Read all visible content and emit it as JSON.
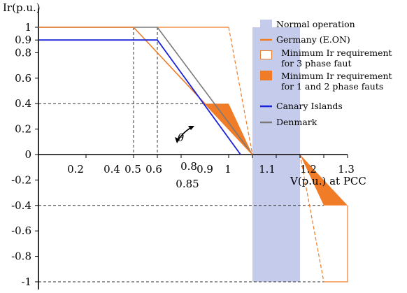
{
  "chart_data": {
    "type": "line",
    "ylabel": "Ir(p.u.)",
    "xlabel": "V(p.u.) at PCC",
    "xlim": [
      0,
      1.3
    ],
    "ylim": [
      -1,
      1
    ],
    "x_ticks": [
      {
        "label": "0.2",
        "value": 0.2
      },
      {
        "label": "0.4",
        "value": 0.4
      },
      {
        "label": "0.5",
        "value": 0.5
      },
      {
        "label": "0.6",
        "value": 0.6
      },
      {
        "label": "0.8",
        "value": 0.8
      },
      {
        "label": "0.85",
        "value": 0.85
      },
      {
        "label": "0.9",
        "value": 0.9
      },
      {
        "label": "1",
        "value": 1.0
      },
      {
        "label": "1.1",
        "value": 1.1
      },
      {
        "label": "1.2",
        "value": 1.2
      },
      {
        "label": "1.3",
        "value": 1.3
      }
    ],
    "y_ticks": [
      {
        "label": "1",
        "value": 1.0
      },
      {
        "label": "0.9",
        "value": 0.9
      },
      {
        "label": "0.8",
        "value": 0.8
      },
      {
        "label": "0.6",
        "value": 0.6
      },
      {
        "label": "0.4",
        "value": 0.4
      },
      {
        "label": "0.2",
        "value": 0.2
      },
      {
        "label": "0",
        "value": 0
      },
      {
        "label": "-0.2",
        "value": -0.2
      },
      {
        "label": "-0.4",
        "value": -0.4
      },
      {
        "label": "-0.6",
        "value": -0.6
      },
      {
        "label": "-0.8",
        "value": -0.8
      },
      {
        "label": "-1",
        "value": -1.0
      }
    ],
    "angle_label": "θ",
    "series": [
      {
        "name": "Normal operation",
        "kind": "band",
        "color": "#c5cbeb",
        "x": [
          0.9,
          1.1
        ],
        "y": [
          -1,
          1
        ]
      },
      {
        "name": "Germany (E.ON)",
        "kind": "line",
        "color": "#f07c28",
        "x": [
          0,
          0.4,
          0.9
        ],
        "y": [
          1,
          1,
          0
        ]
      },
      {
        "name": "Minimum Ir requirement for 3 phase faut",
        "kind": "outline",
        "color": "#f07c28",
        "x": [
          0.5,
          0.8,
          0.9
        ],
        "y": [
          1,
          1,
          0
        ],
        "x2": [
          1.1,
          1.2,
          1.3
        ],
        "y2": [
          0,
          -1,
          -1
        ]
      },
      {
        "name": "Minimum Ir requirement for 1 and 2 phase fauts",
        "kind": "filled",
        "color": "#f07c28",
        "x": [
          0.7,
          0.8,
          0.9
        ],
        "y": [
          0.4,
          0.4,
          0
        ],
        "x2": [
          1.1,
          1.3,
          1.2
        ],
        "y2": [
          0,
          -0.4,
          -0.4
        ]
      },
      {
        "name": "Canary Islands",
        "kind": "line",
        "color": "#1a22d8",
        "x": [
          0,
          0.5,
          0.85
        ],
        "y": [
          0.9,
          0.9,
          0
        ]
      },
      {
        "name": "Denmark",
        "kind": "line",
        "color": "#7a7a7a",
        "x": [
          0,
          0.5,
          0.9
        ],
        "y": [
          1,
          1,
          0
        ]
      }
    ]
  }
}
